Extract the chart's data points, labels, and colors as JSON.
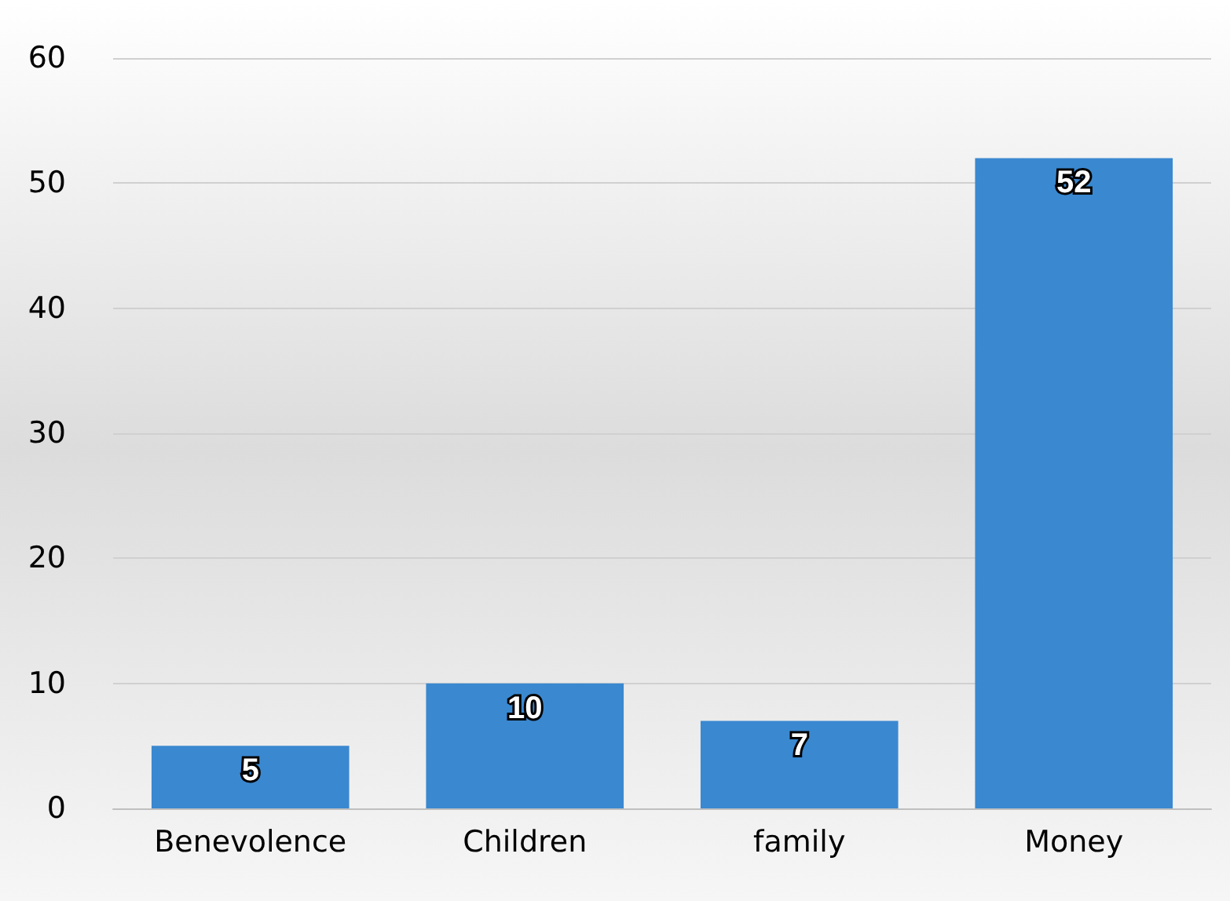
{
  "chart_data": {
    "type": "bar",
    "categories": [
      "Benevolence",
      "Children",
      "family",
      "Money"
    ],
    "values": [
      5,
      10,
      7,
      52
    ],
    "color": "#3a88d0",
    "ylim": [
      0,
      60
    ],
    "yticks": [
      0,
      10,
      20,
      30,
      40,
      50,
      60
    ],
    "grid": "y",
    "data_labels": true
  }
}
